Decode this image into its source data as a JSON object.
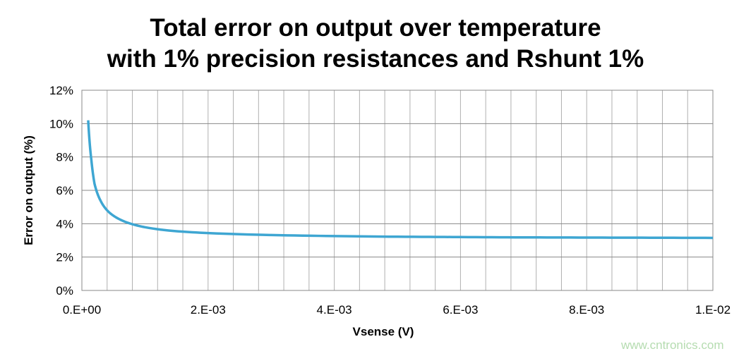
{
  "chart_data": {
    "type": "line",
    "title": "Total error on output over temperature with 1% precision resistances and Rshunt 1%",
    "title_lines": [
      "Total error on output over temperature",
      "with 1% precision resistances and Rshunt 1%"
    ],
    "xlabel": "Vsense (V)",
    "ylabel": "Error on output (%)",
    "xlim": [
      0,
      0.01
    ],
    "ylim": [
      0,
      12
    ],
    "x_ticks": [
      0,
      0.002,
      0.004,
      0.006,
      0.008,
      0.01
    ],
    "x_tick_labels": [
      "0.E+00",
      "2.E-03",
      "4.E-03",
      "6.E-03",
      "8.E-03",
      "1.E-02"
    ],
    "x_minor_grid_step": 0.0004,
    "y_ticks": [
      0,
      2,
      4,
      6,
      8,
      10,
      12
    ],
    "y_tick_labels": [
      "0%",
      "2%",
      "4%",
      "6%",
      "8%",
      "10%",
      "12%"
    ],
    "grid": true,
    "legend": "none",
    "series": [
      {
        "name": "Error on output",
        "color": "#3ea6d2",
        "x": [
          0.0001,
          0.00015,
          0.0002,
          0.0003,
          0.0004,
          0.0005,
          0.0006,
          0.0008,
          0.001,
          0.0015,
          0.002,
          0.003,
          0.004,
          0.005,
          0.006,
          0.007,
          0.008,
          0.009,
          0.01
        ],
        "y": [
          10.2,
          7.83,
          6.4,
          5.35,
          4.8,
          4.48,
          4.26,
          3.97,
          3.79,
          3.55,
          3.44,
          3.32,
          3.26,
          3.22,
          3.2,
          3.18,
          3.17,
          3.16,
          3.15
        ]
      }
    ]
  },
  "watermark": "www.cntronics.com"
}
